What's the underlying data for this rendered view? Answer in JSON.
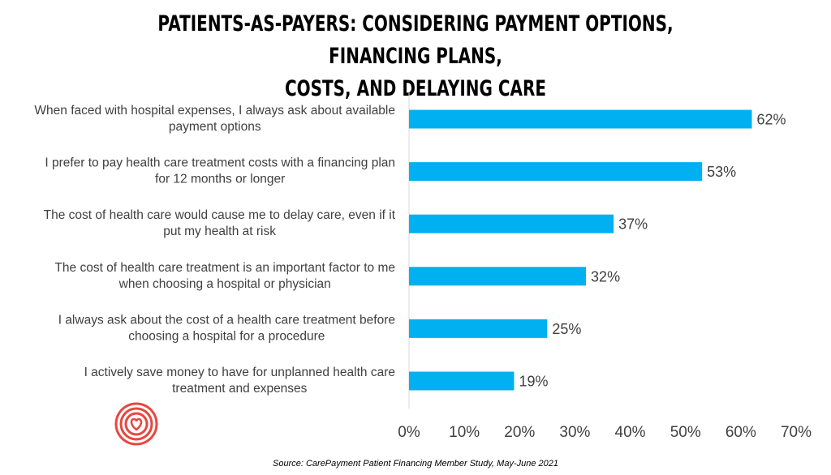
{
  "title_lines": [
    "PATIENTS-AS-PAYERS: CONSIDERING PAYMENT OPTIONS, FINANCING PLANS,",
    "COSTS, AND DELAYING CARE"
  ],
  "source": "Source: CarePayment Patient Financing Member Study, May-June 2021",
  "colors": {
    "bar": "#00B0F0",
    "axis": "#D9D9D9",
    "logo": "#E8473F"
  },
  "logo_icon": "concentric-heart-logo-icon",
  "chart_data": {
    "type": "bar",
    "orientation": "horizontal",
    "title": "PATIENTS-AS-PAYERS: CONSIDERING PAYMENT OPTIONS, FINANCING PLANS, COSTS, AND DELAYING CARE",
    "categories": [
      [
        "When faced with hospital expenses, I always ask about available",
        "payment options"
      ],
      [
        "I prefer to pay health care treatment costs with a financing plan",
        "for 12 months or longer"
      ],
      [
        "The cost of health care would cause me to delay care, even if it",
        "put my health at risk"
      ],
      [
        "The cost of health care treatment is an important factor to me",
        "when choosing a hospital or physician"
      ],
      [
        "I always ask about the cost of a health care treatment before",
        "choosing a hospital for a procedure"
      ],
      [
        "I actively save money to have for unplanned health care",
        "treatment and expenses"
      ]
    ],
    "values": [
      62,
      53,
      37,
      32,
      25,
      19
    ],
    "value_labels": [
      "62%",
      "53%",
      "37%",
      "32%",
      "25%",
      "19%"
    ],
    "xlim": [
      0,
      70
    ],
    "ticks": [
      "0%",
      "10%",
      "20%",
      "30%",
      "40%",
      "50%",
      "60%",
      "70%"
    ],
    "grid": false,
    "legend": "none"
  }
}
